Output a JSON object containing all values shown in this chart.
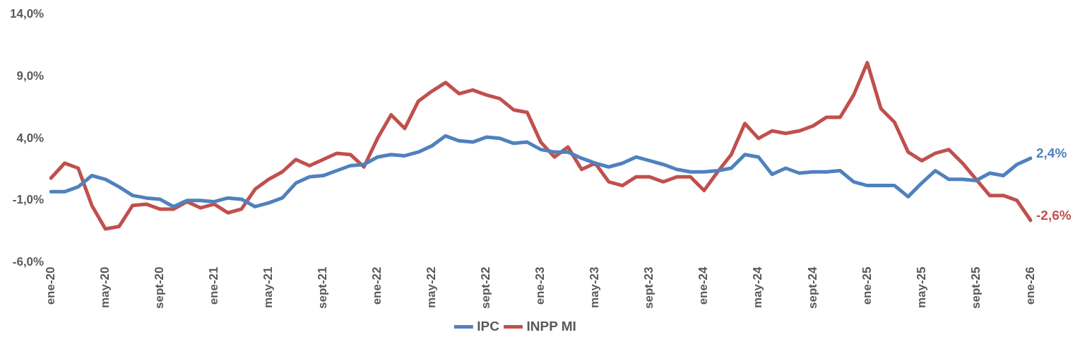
{
  "chart_data": {
    "type": "line",
    "categories": [
      "ene-20",
      null,
      null,
      null,
      "may-20",
      null,
      null,
      null,
      "sept-20",
      null,
      null,
      null,
      "ene-21",
      null,
      null,
      null,
      "may-21",
      null,
      null,
      null,
      "sept-21",
      null,
      null,
      null,
      "ene-22",
      null,
      null,
      null,
      "may-22",
      null,
      null,
      null,
      "sept-22",
      null,
      null,
      null,
      "ene-23",
      null,
      null,
      null,
      "may-23",
      null,
      null,
      null,
      "sept-23",
      null,
      null,
      null,
      "ene-24",
      null,
      null,
      null,
      "may-24",
      null,
      null,
      null,
      "sept-24",
      null,
      null,
      null,
      "ene-25",
      null,
      null,
      null,
      "may-25",
      null,
      null,
      null,
      "sept-25",
      null,
      null,
      null,
      "ene-26"
    ],
    "series": [
      {
        "name": "IPC",
        "color": "#4f81bd",
        "values": [
          -0.3,
          -0.3,
          0.1,
          1.0,
          0.7,
          0.1,
          -0.6,
          -0.8,
          -0.9,
          -1.5,
          -1.0,
          -1.0,
          -1.1,
          -0.8,
          -0.9,
          -1.5,
          -1.2,
          -0.8,
          0.4,
          0.9,
          1.0,
          1.4,
          1.8,
          1.9,
          2.5,
          2.7,
          2.6,
          2.9,
          3.4,
          4.2,
          3.8,
          3.7,
          4.1,
          4.0,
          3.6,
          3.7,
          3.1,
          2.9,
          2.9,
          2.4,
          2.0,
          1.7,
          2.0,
          2.5,
          2.2,
          1.9,
          1.5,
          1.3,
          1.3,
          1.4,
          1.6,
          2.7,
          2.5,
          1.1,
          1.6,
          1.2,
          1.3,
          1.3,
          1.4,
          0.5,
          0.2,
          0.2,
          0.2,
          -0.7,
          0.4,
          1.4,
          0.7,
          0.7,
          0.6,
          1.2,
          1.0,
          1.9,
          2.4
        ],
        "value_labels": [
          null,
          null,
          null,
          null,
          null,
          null,
          null,
          null,
          null,
          null,
          null,
          null,
          null,
          null,
          null,
          null,
          null,
          null,
          null,
          null,
          null,
          null,
          null,
          null,
          null,
          null,
          null,
          null,
          null,
          null,
          null,
          null,
          null,
          null,
          null,
          null,
          null,
          null,
          null,
          null,
          null,
          null,
          null,
          null,
          null,
          null,
          null,
          null,
          null,
          null,
          null,
          null,
          null,
          null,
          null,
          null,
          null,
          null,
          null,
          null,
          null,
          null,
          null,
          null,
          null,
          null,
          null,
          null,
          null,
          null,
          null,
          null,
          "2,4%"
        ]
      },
      {
        "name": "INPP MI",
        "color": "#c0504d",
        "values": [
          0.8,
          2.0,
          1.6,
          -1.4,
          -3.3,
          -3.1,
          -1.4,
          -1.3,
          -1.7,
          -1.7,
          -1.1,
          -1.6,
          -1.3,
          -2.0,
          -1.7,
          -0.1,
          0.7,
          1.3,
          2.3,
          1.8,
          2.3,
          2.8,
          2.7,
          1.7,
          4.0,
          5.9,
          4.8,
          7.0,
          7.8,
          8.5,
          7.6,
          7.9,
          7.5,
          7.2,
          6.3,
          6.1,
          3.7,
          2.5,
          3.3,
          1.5,
          2.0,
          0.5,
          0.2,
          0.9,
          0.9,
          0.5,
          0.9,
          0.9,
          -0.2,
          1.3,
          2.7,
          5.2,
          4.0,
          4.6,
          4.4,
          4.6,
          5.0,
          5.7,
          5.7,
          7.5,
          10.1,
          6.4,
          5.3,
          2.9,
          2.2,
          2.8,
          3.1,
          2.0,
          0.7,
          -0.6,
          -0.6,
          -1.0,
          -2.6
        ],
        "value_labels": [
          null,
          null,
          null,
          null,
          null,
          null,
          null,
          null,
          null,
          null,
          null,
          null,
          null,
          null,
          null,
          null,
          null,
          null,
          null,
          null,
          null,
          null,
          null,
          null,
          null,
          null,
          null,
          null,
          null,
          null,
          null,
          null,
          null,
          null,
          null,
          null,
          null,
          null,
          null,
          null,
          null,
          null,
          null,
          null,
          null,
          null,
          null,
          null,
          null,
          null,
          null,
          null,
          null,
          null,
          null,
          null,
          null,
          null,
          null,
          null,
          null,
          null,
          null,
          null,
          null,
          null,
          null,
          null,
          null,
          null,
          null,
          null,
          "-2,6%"
        ]
      }
    ],
    "ylim": [
      -6,
      14
    ],
    "yticks": [
      {
        "value": -6,
        "label": "-6,0%"
      },
      {
        "value": -1,
        "label": "-1,0%"
      },
      {
        "value": 4,
        "label": "4,0%"
      },
      {
        "value": 9,
        "label": "9,0%"
      },
      {
        "value": 14,
        "label": "14,0%"
      }
    ],
    "legend": "bottom",
    "marker": "none",
    "line_style": "solid"
  }
}
